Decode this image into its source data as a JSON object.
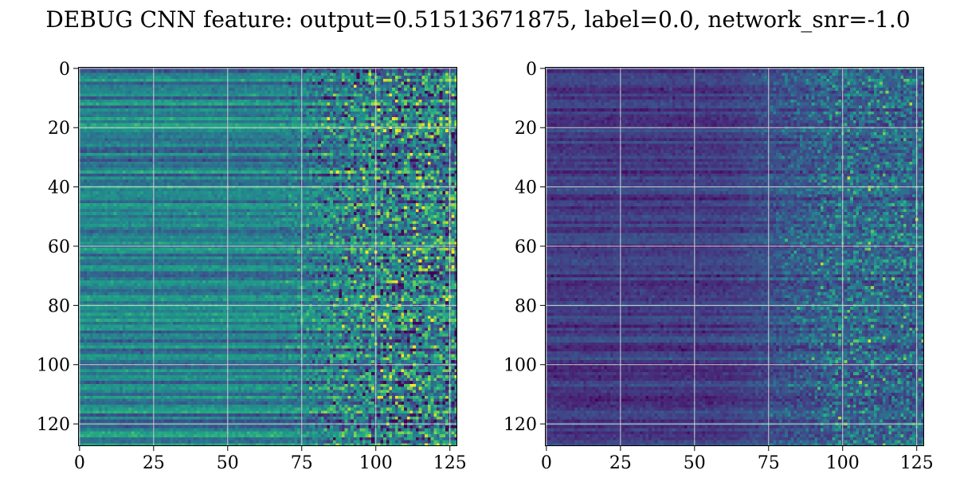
{
  "title": "DEBUG CNN feature: output=0.51513671875, label=0.0, network_snr=-1.0",
  "chart_data": [
    {
      "type": "heatmap",
      "name": "",
      "colormap": "viridis",
      "rows": 128,
      "cols": 128,
      "grid": true,
      "xlim": [
        -0.5,
        127.5
      ],
      "ylim": [
        127.5,
        -0.5
      ],
      "xticks": [
        0,
        25,
        50,
        75,
        100,
        125
      ],
      "yticks": [
        0,
        20,
        40,
        60,
        80,
        100,
        120
      ],
      "xlabel": "",
      "ylabel": "",
      "description": "left panel"
    },
    {
      "type": "heatmap",
      "name": "",
      "colormap": "viridis",
      "rows": 128,
      "cols": 128,
      "grid": true,
      "xlim": [
        -0.5,
        127.5
      ],
      "ylim": [
        127.5,
        -0.5
      ],
      "xticks": [
        0,
        25,
        50,
        75,
        100,
        125
      ],
      "yticks": [
        0,
        20,
        40,
        60,
        80,
        100,
        120
      ],
      "xlabel": "",
      "ylabel": "",
      "description": "right panel"
    }
  ]
}
